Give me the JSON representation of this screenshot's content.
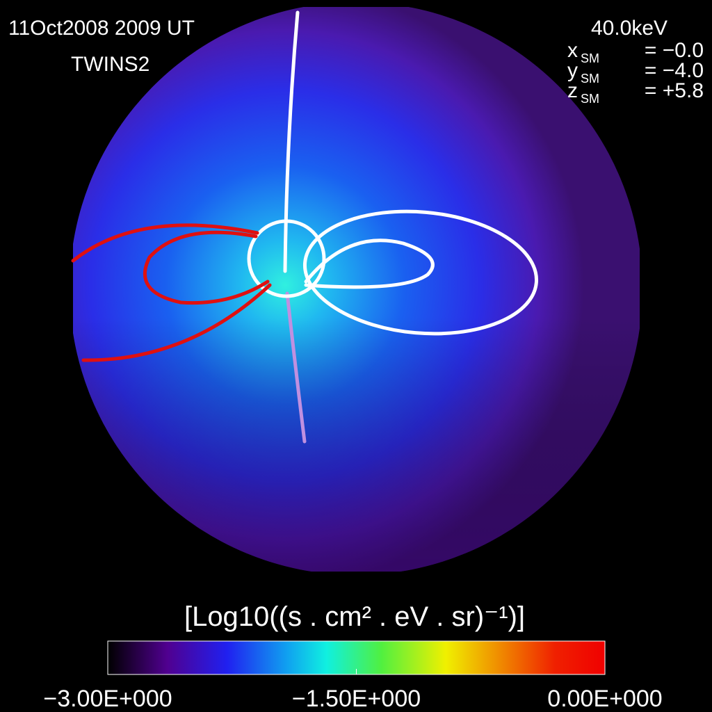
{
  "header": {
    "date": "11Oct2008 2009 UT",
    "spacecraft": "TWINS2",
    "energy": "40.0keV",
    "position": [
      {
        "var": "x",
        "sub": "SM",
        "value": "= −0.0"
      },
      {
        "var": "y",
        "sub": "SM",
        "value": "= −4.0"
      },
      {
        "var": "z",
        "sub": "SM",
        "value": "= +5.8"
      }
    ]
  },
  "colorbar": {
    "label": "[Log10((s . cm² . eV . sr)⁻¹)]",
    "lim": [
      -3,
      0
    ],
    "ticks": [
      {
        "value": -3,
        "label": "−3.00E+000"
      },
      {
        "value": -1.5,
        "label": "−1.50E+000"
      },
      {
        "value": 0,
        "label": "0.00E+000"
      }
    ]
  }
}
